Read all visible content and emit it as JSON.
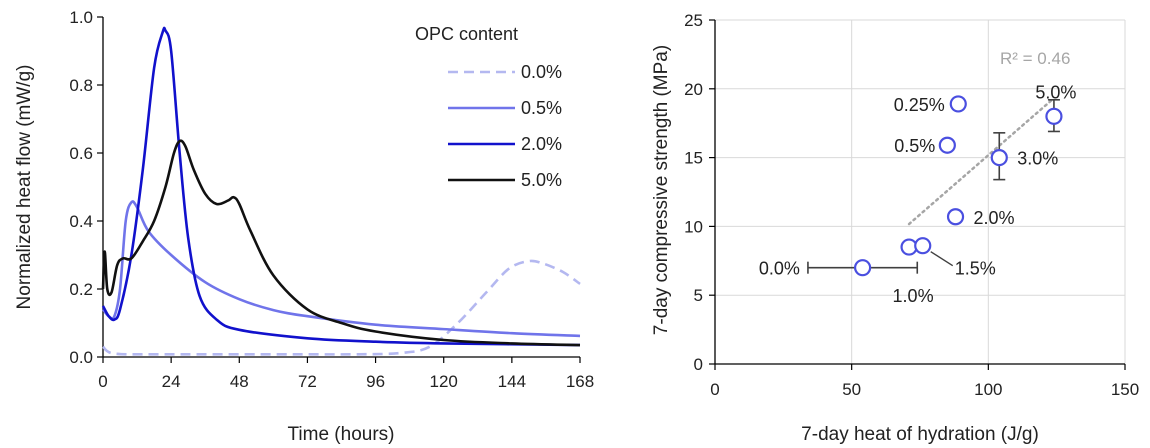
{
  "chart_data": [
    {
      "type": "line",
      "xlabel": "Time (hours)",
      "ylabel": "Normalized heat flow (mW/g)",
      "xlim": [
        0,
        168
      ],
      "ylim": [
        0,
        1.0
      ],
      "xticks": [
        0,
        24,
        48,
        72,
        96,
        120,
        144,
        168
      ],
      "yticks": [
        0.0,
        0.2,
        0.4,
        0.6,
        0.8,
        1.0
      ],
      "ytick_labels": [
        "0.0",
        "0.2",
        "0.4",
        "0.6",
        "0.8",
        "1.0"
      ],
      "grid": false,
      "legend_title": "OPC content",
      "legend_position": "top-right",
      "series": [
        {
          "name": "0.0%",
          "color": "#b4b8f0",
          "style": "dashed",
          "points": [
            [
              0,
              0.03
            ],
            [
              4,
              0.01
            ],
            [
              20,
              0.008
            ],
            [
              60,
              0.008
            ],
            [
              90,
              0.008
            ],
            [
              105,
              0.012
            ],
            [
              115,
              0.03
            ],
            [
              125,
              0.1
            ],
            [
              135,
              0.19
            ],
            [
              143,
              0.26
            ],
            [
              150,
              0.282
            ],
            [
              155,
              0.275
            ],
            [
              162,
              0.25
            ],
            [
              168,
              0.215
            ]
          ]
        },
        {
          "name": "0.5%",
          "color": "#7074ea",
          "style": "solid",
          "points": [
            [
              0,
              0.14
            ],
            [
              2,
              0.12
            ],
            [
              4,
              0.12
            ],
            [
              6,
              0.2
            ],
            [
              8,
              0.4
            ],
            [
              10,
              0.455
            ],
            [
              12,
              0.44
            ],
            [
              16,
              0.37
            ],
            [
              24,
              0.3
            ],
            [
              36,
              0.22
            ],
            [
              48,
              0.17
            ],
            [
              60,
              0.138
            ],
            [
              72,
              0.12
            ],
            [
              96,
              0.095
            ],
            [
              120,
              0.082
            ],
            [
              144,
              0.07
            ],
            [
              168,
              0.062
            ]
          ]
        },
        {
          "name": "2.0%",
          "color": "#1111cc",
          "style": "solid",
          "points": [
            [
              0,
              0.15
            ],
            [
              2,
              0.12
            ],
            [
              4,
              0.11
            ],
            [
              6,
              0.14
            ],
            [
              10,
              0.3
            ],
            [
              14,
              0.55
            ],
            [
              18,
              0.85
            ],
            [
              21,
              0.955
            ],
            [
              22,
              0.96
            ],
            [
              24,
              0.9
            ],
            [
              27,
              0.6
            ],
            [
              30,
              0.35
            ],
            [
              34,
              0.18
            ],
            [
              40,
              0.11
            ],
            [
              48,
              0.08
            ],
            [
              72,
              0.055
            ],
            [
              96,
              0.045
            ],
            [
              120,
              0.04
            ],
            [
              168,
              0.035
            ]
          ]
        },
        {
          "name": "5.0%",
          "color": "#111111",
          "style": "solid",
          "points": [
            [
              0,
              0.2
            ],
            [
              0.6,
              0.31
            ],
            [
              1.5,
              0.2
            ],
            [
              3,
              0.19
            ],
            [
              5,
              0.27
            ],
            [
              7,
              0.29
            ],
            [
              10,
              0.29
            ],
            [
              14,
              0.34
            ],
            [
              18,
              0.4
            ],
            [
              22,
              0.5
            ],
            [
              25,
              0.6
            ],
            [
              27,
              0.635
            ],
            [
              29,
              0.62
            ],
            [
              32,
              0.55
            ],
            [
              36,
              0.48
            ],
            [
              40,
              0.45
            ],
            [
              44,
              0.46
            ],
            [
              46,
              0.47
            ],
            [
              48,
              0.45
            ],
            [
              52,
              0.37
            ],
            [
              60,
              0.24
            ],
            [
              72,
              0.14
            ],
            [
              84,
              0.1
            ],
            [
              96,
              0.075
            ],
            [
              120,
              0.05
            ],
            [
              144,
              0.04
            ],
            [
              168,
              0.035
            ]
          ]
        }
      ]
    },
    {
      "type": "scatter",
      "xlabel": "7-day heat of hydration (J/g)",
      "ylabel": "7-day compressive strength (MPa)",
      "xlim": [
        0,
        150
      ],
      "ylim": [
        0,
        25
      ],
      "xticks": [
        0,
        50,
        100,
        150
      ],
      "yticks": [
        0,
        5,
        10,
        15,
        20,
        25
      ],
      "grid": true,
      "marker_color": "#4a4fe0",
      "points": [
        {
          "label": "0.0%",
          "x": 54,
          "y": 7.0,
          "xerr": [
            34,
            74
          ],
          "yerr": null,
          "label_side": "left"
        },
        {
          "label": "1.0%",
          "x": 71,
          "y": 8.5,
          "xerr": null,
          "yerr": null,
          "label_side": "below"
        },
        {
          "label": "1.5%",
          "x": 76,
          "y": 8.6,
          "xerr": null,
          "yerr": null,
          "label_side": "lower-right"
        },
        {
          "label": "2.0%",
          "x": 88,
          "y": 10.7,
          "xerr": [
            86.5,
            89.5
          ],
          "yerr": null,
          "label_side": "right"
        },
        {
          "label": "3.0%",
          "x": 104,
          "y": 15.0,
          "xerr": null,
          "yerr": [
            13.4,
            16.8
          ],
          "label_side": "right"
        },
        {
          "label": "5.0%",
          "x": 124,
          "y": 18.0,
          "xerr": null,
          "yerr": [
            16.9,
            19.2
          ],
          "label_side": "above"
        },
        {
          "label": "0.5%",
          "x": 85,
          "y": 15.9,
          "xerr": [
            83.5,
            86.5
          ],
          "yerr": null,
          "label_side": "left"
        },
        {
          "label": "0.25%",
          "x": 89,
          "y": 18.9,
          "xerr": [
            87,
            91
          ],
          "yerr": null,
          "label_side": "left"
        }
      ],
      "trendline": {
        "x": [
          71,
          124
        ],
        "style": "dotted",
        "color": "#a6a6a6",
        "r2_label": "R² = 0.46"
      }
    }
  ]
}
